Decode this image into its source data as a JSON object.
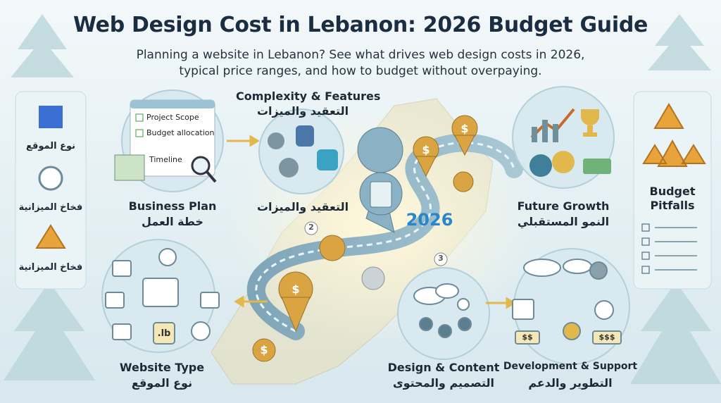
{
  "header": {
    "title": "Web Design Cost in Lebanon: 2026 Budget Guide",
    "subtitle": [
      "Planning a website in Lebanon? See what drives web design costs in 2026,",
      "typical price ranges, and how to budget without overpaying."
    ]
  },
  "sidebar": {
    "items": [
      "نوع الموقع",
      "فخاخ الميزانية",
      "فخاخ الميزانية"
    ]
  },
  "business_plan": {
    "checklist": [
      "Project Scope",
      "Budget allocation",
      "Timeline"
    ],
    "label_en": "Business Plan",
    "label_ar": "خطة العمل"
  },
  "complexity": {
    "label_en": "Complexity & Features",
    "label_ar": "التعقيد والميزات",
    "caption_ar": "التعقيد والميزات"
  },
  "future_growth": {
    "label_en": "Future Growth",
    "label_ar": "النمو المستقبلي"
  },
  "budget_pitfalls": {
    "title": "Budget Pitfalls"
  },
  "website_type": {
    "label_en": "Website Type",
    "label_ar": "نوع الموقع",
    "domain": ".lb"
  },
  "design_content": {
    "label_en": "Design & Content",
    "label_ar": "التصميم والمحتوى"
  },
  "dev_support": {
    "label_en": "Development & Support",
    "label_ar": "التطوير والدعم",
    "price_tags": [
      "$$",
      "$$$"
    ]
  },
  "road": {
    "year": "2026",
    "markers": [
      "2",
      "3"
    ]
  }
}
